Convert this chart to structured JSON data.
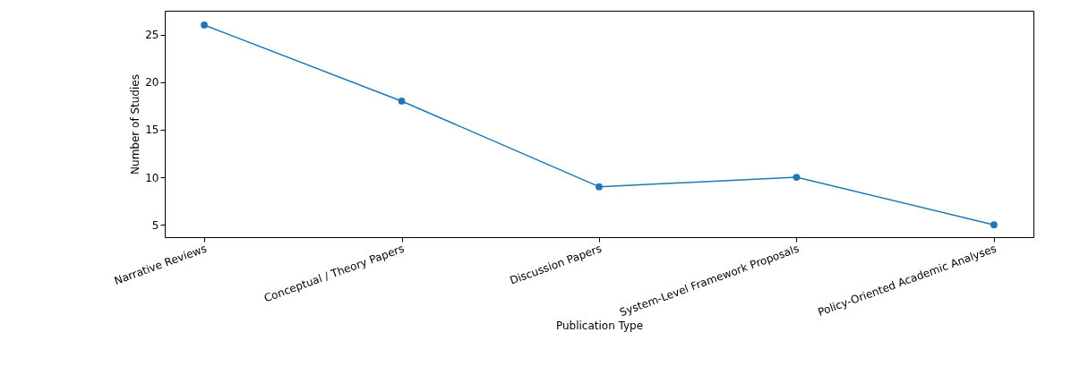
{
  "chart_data": {
    "type": "line",
    "xlabel": "Publication Type",
    "ylabel": "Number of Studies",
    "categories": [
      "Narrative Reviews",
      "Conceptual / Theory Papers",
      "Discussion Papers",
      "System-Level Framework Proposals",
      "Policy-Oriented Academic Analyses"
    ],
    "series": [
      {
        "color": "#1f77b4",
        "values": [
          26,
          18,
          9,
          10,
          5
        ]
      }
    ],
    "ylim": [
      3.7,
      27.5
    ],
    "yticks": [
      5,
      10,
      15,
      20,
      25
    ],
    "marker": "circle",
    "line_style": "solid",
    "grid": false,
    "legend": false
  }
}
